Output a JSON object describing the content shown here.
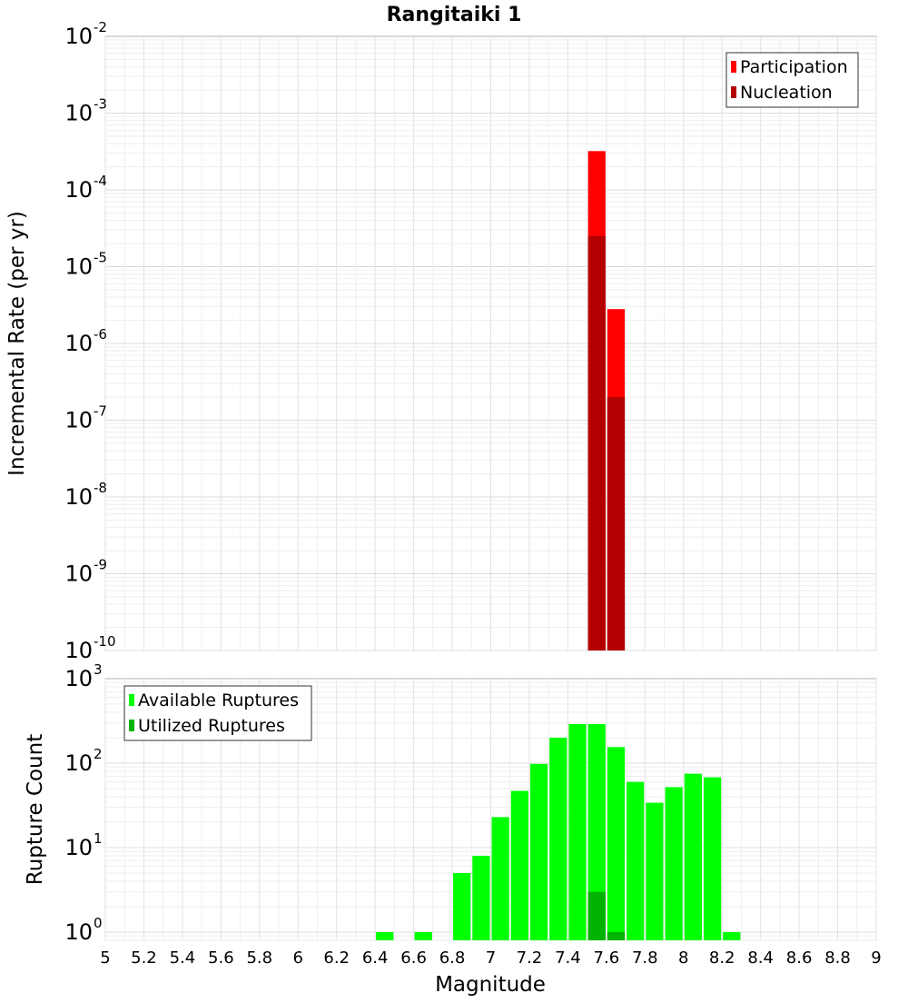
{
  "chart_data": [
    {
      "type": "bar",
      "title": "Rangitaiki 1",
      "xlabel": "",
      "ylabel": "Incremental Rate (per yr)",
      "yscale": "log",
      "xlim": [
        5,
        9
      ],
      "ylim": [
        1e-10,
        0.01
      ],
      "ytick_labels": [
        {
          "base": "10",
          "exp": "-2",
          "value": 0.01
        },
        {
          "base": "10",
          "exp": "-3",
          "value": 0.001
        },
        {
          "base": "10",
          "exp": "-4",
          "value": 0.0001
        },
        {
          "base": "10",
          "exp": "-5",
          "value": 1e-05
        },
        {
          "base": "10",
          "exp": "-6",
          "value": 1e-06
        },
        {
          "base": "10",
          "exp": "-7",
          "value": 1e-07
        },
        {
          "base": "10",
          "exp": "-8",
          "value": 1e-08
        },
        {
          "base": "10",
          "exp": "-9",
          "value": 1e-09
        },
        {
          "base": "10",
          "exp": "-10",
          "value": 1e-10
        }
      ],
      "grid": true,
      "legend": {
        "placement": "top-right",
        "entries": [
          {
            "label": "Participation",
            "color": "#ff0000"
          },
          {
            "label": "Nucleation",
            "color": "#b30000"
          }
        ]
      },
      "bin_width": 0.1,
      "series": [
        {
          "name": "Participation",
          "color": "#ff0000",
          "points": [
            {
              "x": 7.55,
              "y": 0.00032
            },
            {
              "x": 7.65,
              "y": 2.8e-06
            }
          ]
        },
        {
          "name": "Nucleation",
          "color": "#b30000",
          "points": [
            {
              "x": 7.55,
              "y": 2.5e-05
            },
            {
              "x": 7.65,
              "y": 2e-07
            }
          ]
        }
      ]
    },
    {
      "type": "bar",
      "title": "",
      "xlabel": "Magnitude",
      "ylabel": "Rupture Count",
      "yscale": "log",
      "xlim": [
        5,
        9
      ],
      "ylim": [
        0.8,
        1000
      ],
      "ytick_labels": [
        {
          "base": "10",
          "exp": "3",
          "value": 1000
        },
        {
          "base": "10",
          "exp": "2",
          "value": 100
        },
        {
          "base": "10",
          "exp": "1",
          "value": 10
        },
        {
          "base": "10",
          "exp": "0",
          "value": 1
        }
      ],
      "xtick_labels": [
        "5",
        "5.2",
        "5.4",
        "5.6",
        "5.8",
        "6",
        "6.2",
        "6.4",
        "6.6",
        "6.8",
        "7",
        "7.2",
        "7.4",
        "7.6",
        "7.8",
        "8",
        "8.2",
        "8.4",
        "8.6",
        "8.8",
        "9"
      ],
      "grid": true,
      "legend": {
        "placement": "top-left",
        "entries": [
          {
            "label": "Available Ruptures",
            "color": "#00ff00"
          },
          {
            "label": "Utilized Ruptures",
            "color": "#00b300"
          }
        ]
      },
      "bin_width": 0.1,
      "series": [
        {
          "name": "Available Ruptures",
          "color": "#00ff00",
          "points": [
            {
              "x": 6.45,
              "y": 1
            },
            {
              "x": 6.65,
              "y": 1
            },
            {
              "x": 6.85,
              "y": 5
            },
            {
              "x": 6.95,
              "y": 8
            },
            {
              "x": 7.05,
              "y": 23
            },
            {
              "x": 7.15,
              "y": 47
            },
            {
              "x": 7.25,
              "y": 98
            },
            {
              "x": 7.35,
              "y": 200
            },
            {
              "x": 7.45,
              "y": 290
            },
            {
              "x": 7.55,
              "y": 290
            },
            {
              "x": 7.65,
              "y": 155
            },
            {
              "x": 7.75,
              "y": 60
            },
            {
              "x": 7.85,
              "y": 34
            },
            {
              "x": 7.95,
              "y": 52
            },
            {
              "x": 8.05,
              "y": 75
            },
            {
              "x": 8.15,
              "y": 68
            },
            {
              "x": 8.25,
              "y": 1
            }
          ]
        },
        {
          "name": "Utilized Ruptures",
          "color": "#00b300",
          "points": [
            {
              "x": 7.55,
              "y": 3
            },
            {
              "x": 7.65,
              "y": 1
            }
          ]
        }
      ]
    }
  ]
}
